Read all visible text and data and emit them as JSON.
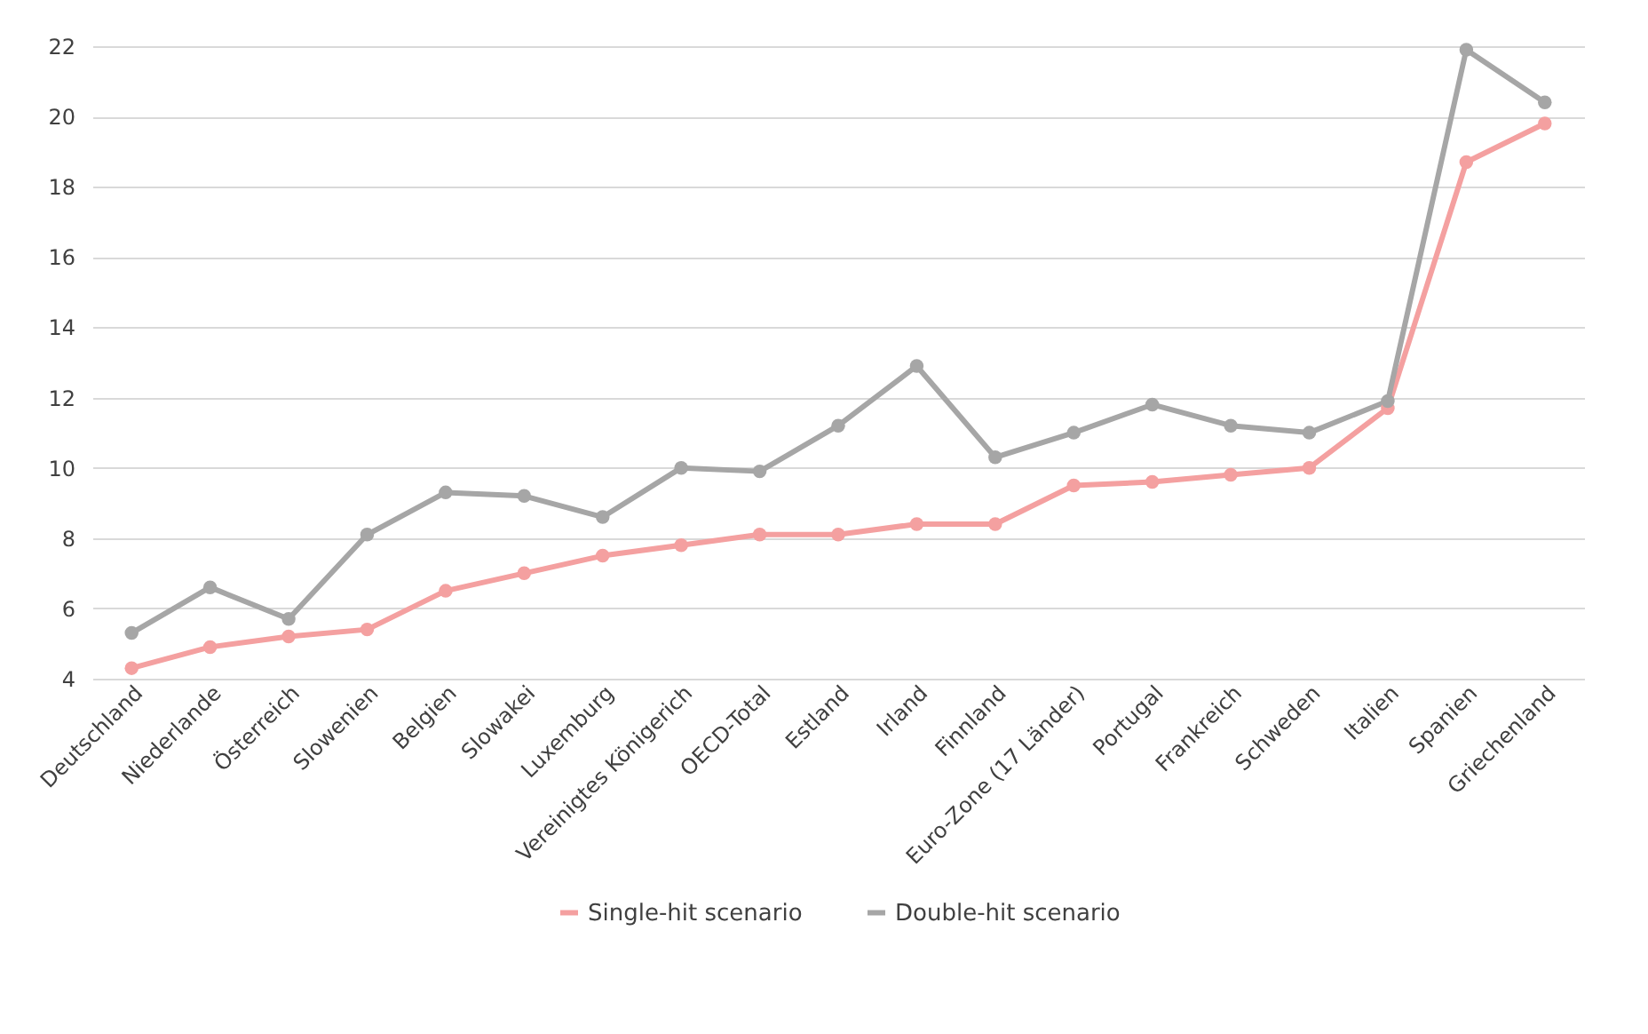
{
  "chart_data": {
    "type": "line",
    "categories": [
      "Deutschland",
      "Niederlande",
      "Österreich",
      "Slowenien",
      "Belgien",
      "Slowakei",
      "Luxemburg",
      "Vereinigtes Königerich",
      "OECD-Total",
      "Estland",
      "Irland",
      "Finnland",
      "Euro-Zone (17 Länder)",
      "Portugal",
      "Frankreich",
      "Schweden",
      "Italien",
      "Spanien",
      "Griechenland"
    ],
    "series": [
      {
        "name": "Single-hit scenario",
        "color": "#f4a0a0",
        "values": [
          4.3,
          4.9,
          5.2,
          5.4,
          6.5,
          7.0,
          7.5,
          7.8,
          8.1,
          8.1,
          8.4,
          8.4,
          9.5,
          9.6,
          9.8,
          10.0,
          11.7,
          18.7,
          19.8
        ]
      },
      {
        "name": "Double-hit scenario",
        "color": "#a6a6a6",
        "values": [
          5.3,
          6.6,
          5.7,
          8.1,
          9.3,
          9.2,
          8.6,
          10.0,
          9.9,
          11.2,
          12.9,
          10.3,
          11.0,
          11.8,
          11.2,
          11.0,
          11.9,
          21.9,
          20.4
        ]
      }
    ],
    "ylim": [
      4,
      22
    ],
    "yticks": [
      4,
      6,
      8,
      10,
      12,
      14,
      16,
      18,
      20,
      22
    ],
    "grid": "y",
    "legend": "bottom",
    "marker": "circle",
    "line_style": "solid"
  }
}
